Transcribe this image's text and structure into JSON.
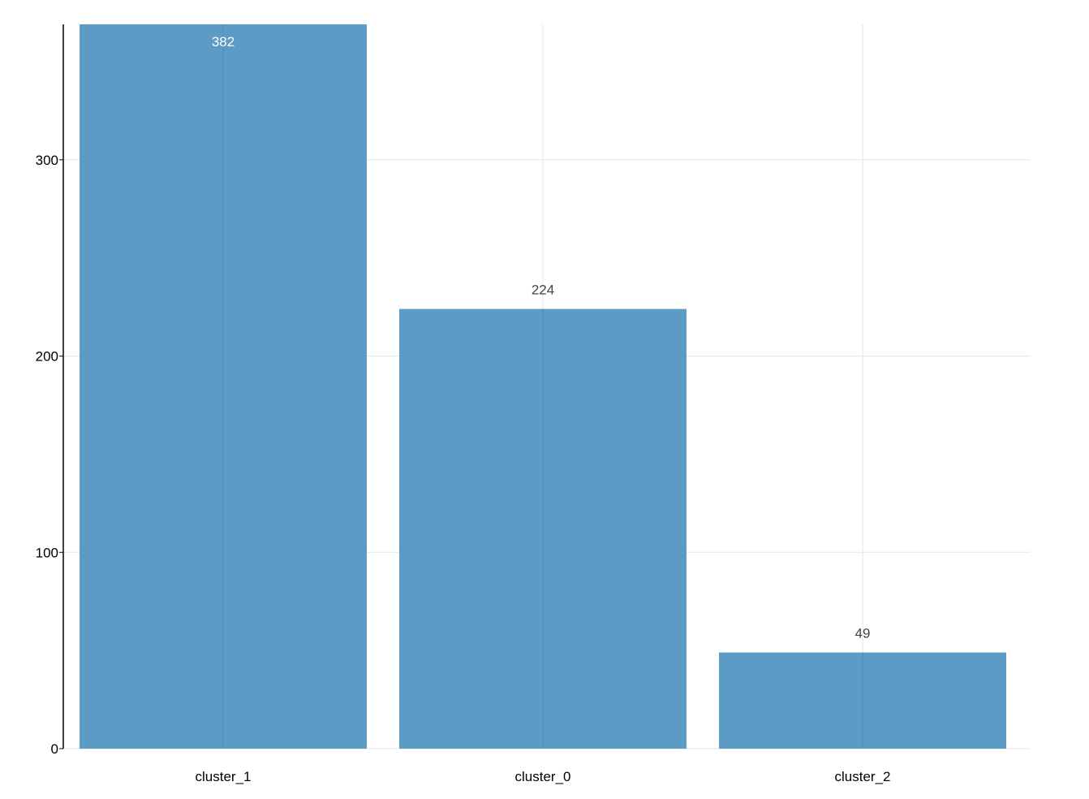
{
  "chart_data": {
    "type": "bar",
    "categories": [
      "cluster_1",
      "cluster_0",
      "cluster_2"
    ],
    "values": [
      382,
      224,
      49
    ],
    "data_labels": [
      "382",
      "224",
      "49"
    ],
    "title": "",
    "xlabel": "",
    "ylabel": "",
    "ylim": [
      0,
      369
    ],
    "yticks": [
      0,
      100,
      200,
      300
    ],
    "grid": true,
    "bar_color": "#5b9bc6",
    "inside_label_color": "#ffffff",
    "outside_label_color": "#444444"
  }
}
